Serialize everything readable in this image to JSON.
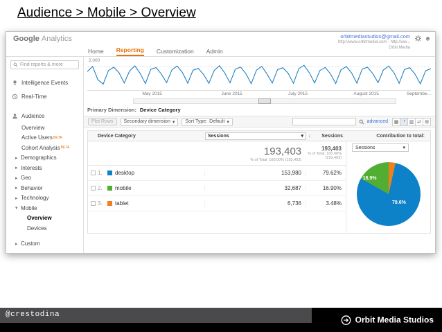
{
  "slide": {
    "title": "Audience > Mobile > Overview"
  },
  "footer": {
    "handle": "@crestodina",
    "brand": "Orbit Media Studios"
  },
  "icons": {
    "caret_down": "▾",
    "sort_down": "↓",
    "view_table": "▦",
    "view_percentage": "◔",
    "view_performance": "▥",
    "view_comparison": "⇄",
    "view_pivot": "⊞"
  },
  "ga": {
    "header": {
      "logo_google": "Google",
      "logo_analytics": "Analytics",
      "nav": [
        "Home",
        "Reporting",
        "Customization",
        "Admin"
      ],
      "account_email": "orbitmediastudios@gmail.com",
      "account_url": "http://www.orbitmedia.com - http://ww...",
      "account_name": "Orbit Media"
    },
    "sidebar": {
      "search_placeholder": "Find reports & more",
      "items": [
        {
          "label": "Intelligence Events",
          "icon": "lightbulb-icon"
        },
        {
          "label": "Real-Time",
          "icon": "clock-icon"
        },
        {
          "label": "Audience",
          "icon": "audience-icon"
        },
        {
          "label": "Overview"
        },
        {
          "label": "Active Users",
          "beta": "BETA"
        },
        {
          "label": "Cohort Analysis",
          "beta": "BETA"
        },
        {
          "label": "Demographics",
          "arrow": "▸"
        },
        {
          "label": "Interests",
          "arrow": "▸"
        },
        {
          "label": "Geo",
          "arrow": "▸"
        },
        {
          "label": "Behavior",
          "arrow": "▸"
        },
        {
          "label": "Technology",
          "arrow": "▸"
        },
        {
          "label": "Mobile",
          "arrow": "▾"
        },
        {
          "label": "Overview",
          "active": true
        },
        {
          "label": "Devices"
        },
        {
          "label": "Custom",
          "arrow": "▸"
        }
      ]
    },
    "report": {
      "primary_dimension_label": "Primary Dimension:",
      "primary_dimension_value": "Device Category",
      "toolbar": {
        "plot_rows": "Plot Rows",
        "secondary_dimension": "Secondary dimension",
        "sort_type_label": "Sort Type:",
        "sort_type_value": "Default",
        "advanced_label": "advanced"
      },
      "table": {
        "col_device": "Device Category",
        "col_sessions": "Sessions",
        "col_sessions_pct": "Sessions",
        "contribution_label": "Contribution to total:",
        "contribution_value": "Sessions",
        "total_sessions": "193,403",
        "total_note": "% of Total: 100.00% (193,403)",
        "total_sessions_pct": "193,403",
        "total_note_pct": "% of Total: 100.00% (193,403)",
        "rows": [
          {
            "index": "1.",
            "label": "desktop",
            "sessions": "153,980",
            "pct": "79.62%",
            "color": "#0e82c8"
          },
          {
            "index": "2.",
            "label": "mobile",
            "sessions": "32,687",
            "pct": "16.90%",
            "color": "#52ae32"
          },
          {
            "index": "3.",
            "label": "tablet",
            "sessions": "6,736",
            "pct": "3.48%",
            "color": "#ee8022"
          }
        ]
      }
    }
  },
  "chart_data": [
    {
      "type": "line",
      "title": "Sessions over time",
      "ylabel_gridline": "2,000",
      "gridline_value": 2000,
      "y_max": 2400,
      "x_ticks": [
        "May 2015",
        "June 2015",
        "July 2015",
        "August 2015",
        "Septembe..."
      ],
      "line_color": "#1f7ec2",
      "values": [
        1600,
        2050,
        900,
        520,
        1700,
        1980,
        1500,
        620,
        1650,
        2100,
        1450,
        560,
        1800,
        1950,
        1400,
        640,
        1750,
        2080,
        1520,
        600,
        1720,
        1880,
        1350,
        580,
        1690,
        2120,
        1480,
        630,
        1810,
        1990,
        1420,
        560,
        1730,
        2060,
        1390,
        610,
        1780,
        1930,
        1460,
        590,
        1850,
        2150,
        1500,
        620,
        1700,
        1960,
        1410,
        570,
        1760,
        2040,
        1480,
        600,
        1820,
        1980,
        1430,
        650,
        1740,
        2090,
        1510,
        580,
        1790,
        1940,
        1380,
        540,
        1670,
        1860
      ]
    },
    {
      "type": "pie",
      "title": "Contribution to total: Sessions",
      "labels": [
        "desktop",
        "mobile",
        "tablet"
      ],
      "values": [
        79.62,
        16.9,
        3.48
      ],
      "colors": [
        "#0e82c8",
        "#52ae32",
        "#ee8022"
      ],
      "draw_order": [
        2,
        0,
        1
      ],
      "shown_labels": [
        "79.6%",
        "16.9%"
      ]
    }
  ]
}
